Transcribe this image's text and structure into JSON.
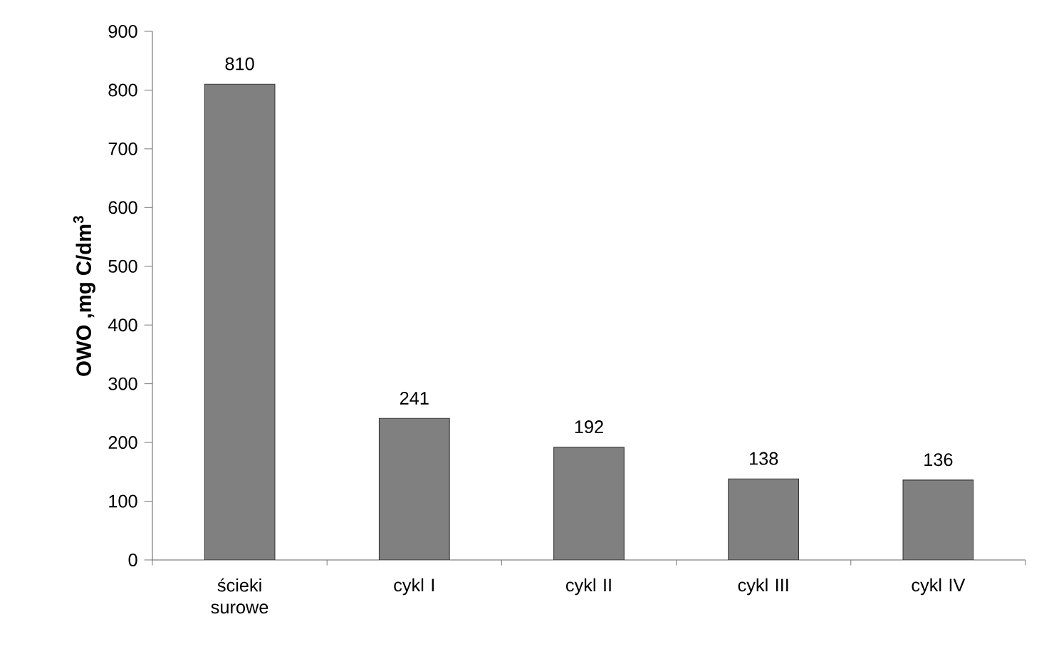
{
  "chart_data": {
    "type": "bar",
    "ylabel": "OWO ,mg C/dm$^{3}$",
    "categories": [
      "ścieki surowe",
      "cykl I",
      "cykl II",
      "cykl III",
      "cykl IV"
    ],
    "values": [
      810,
      241,
      192,
      138,
      136
    ],
    "color": "#808080",
    "ylim": [
      0,
      900
    ],
    "yticks": [
      0,
      100,
      200,
      300,
      400,
      500,
      600,
      700,
      800,
      900
    ],
    "data_labels": true
  }
}
